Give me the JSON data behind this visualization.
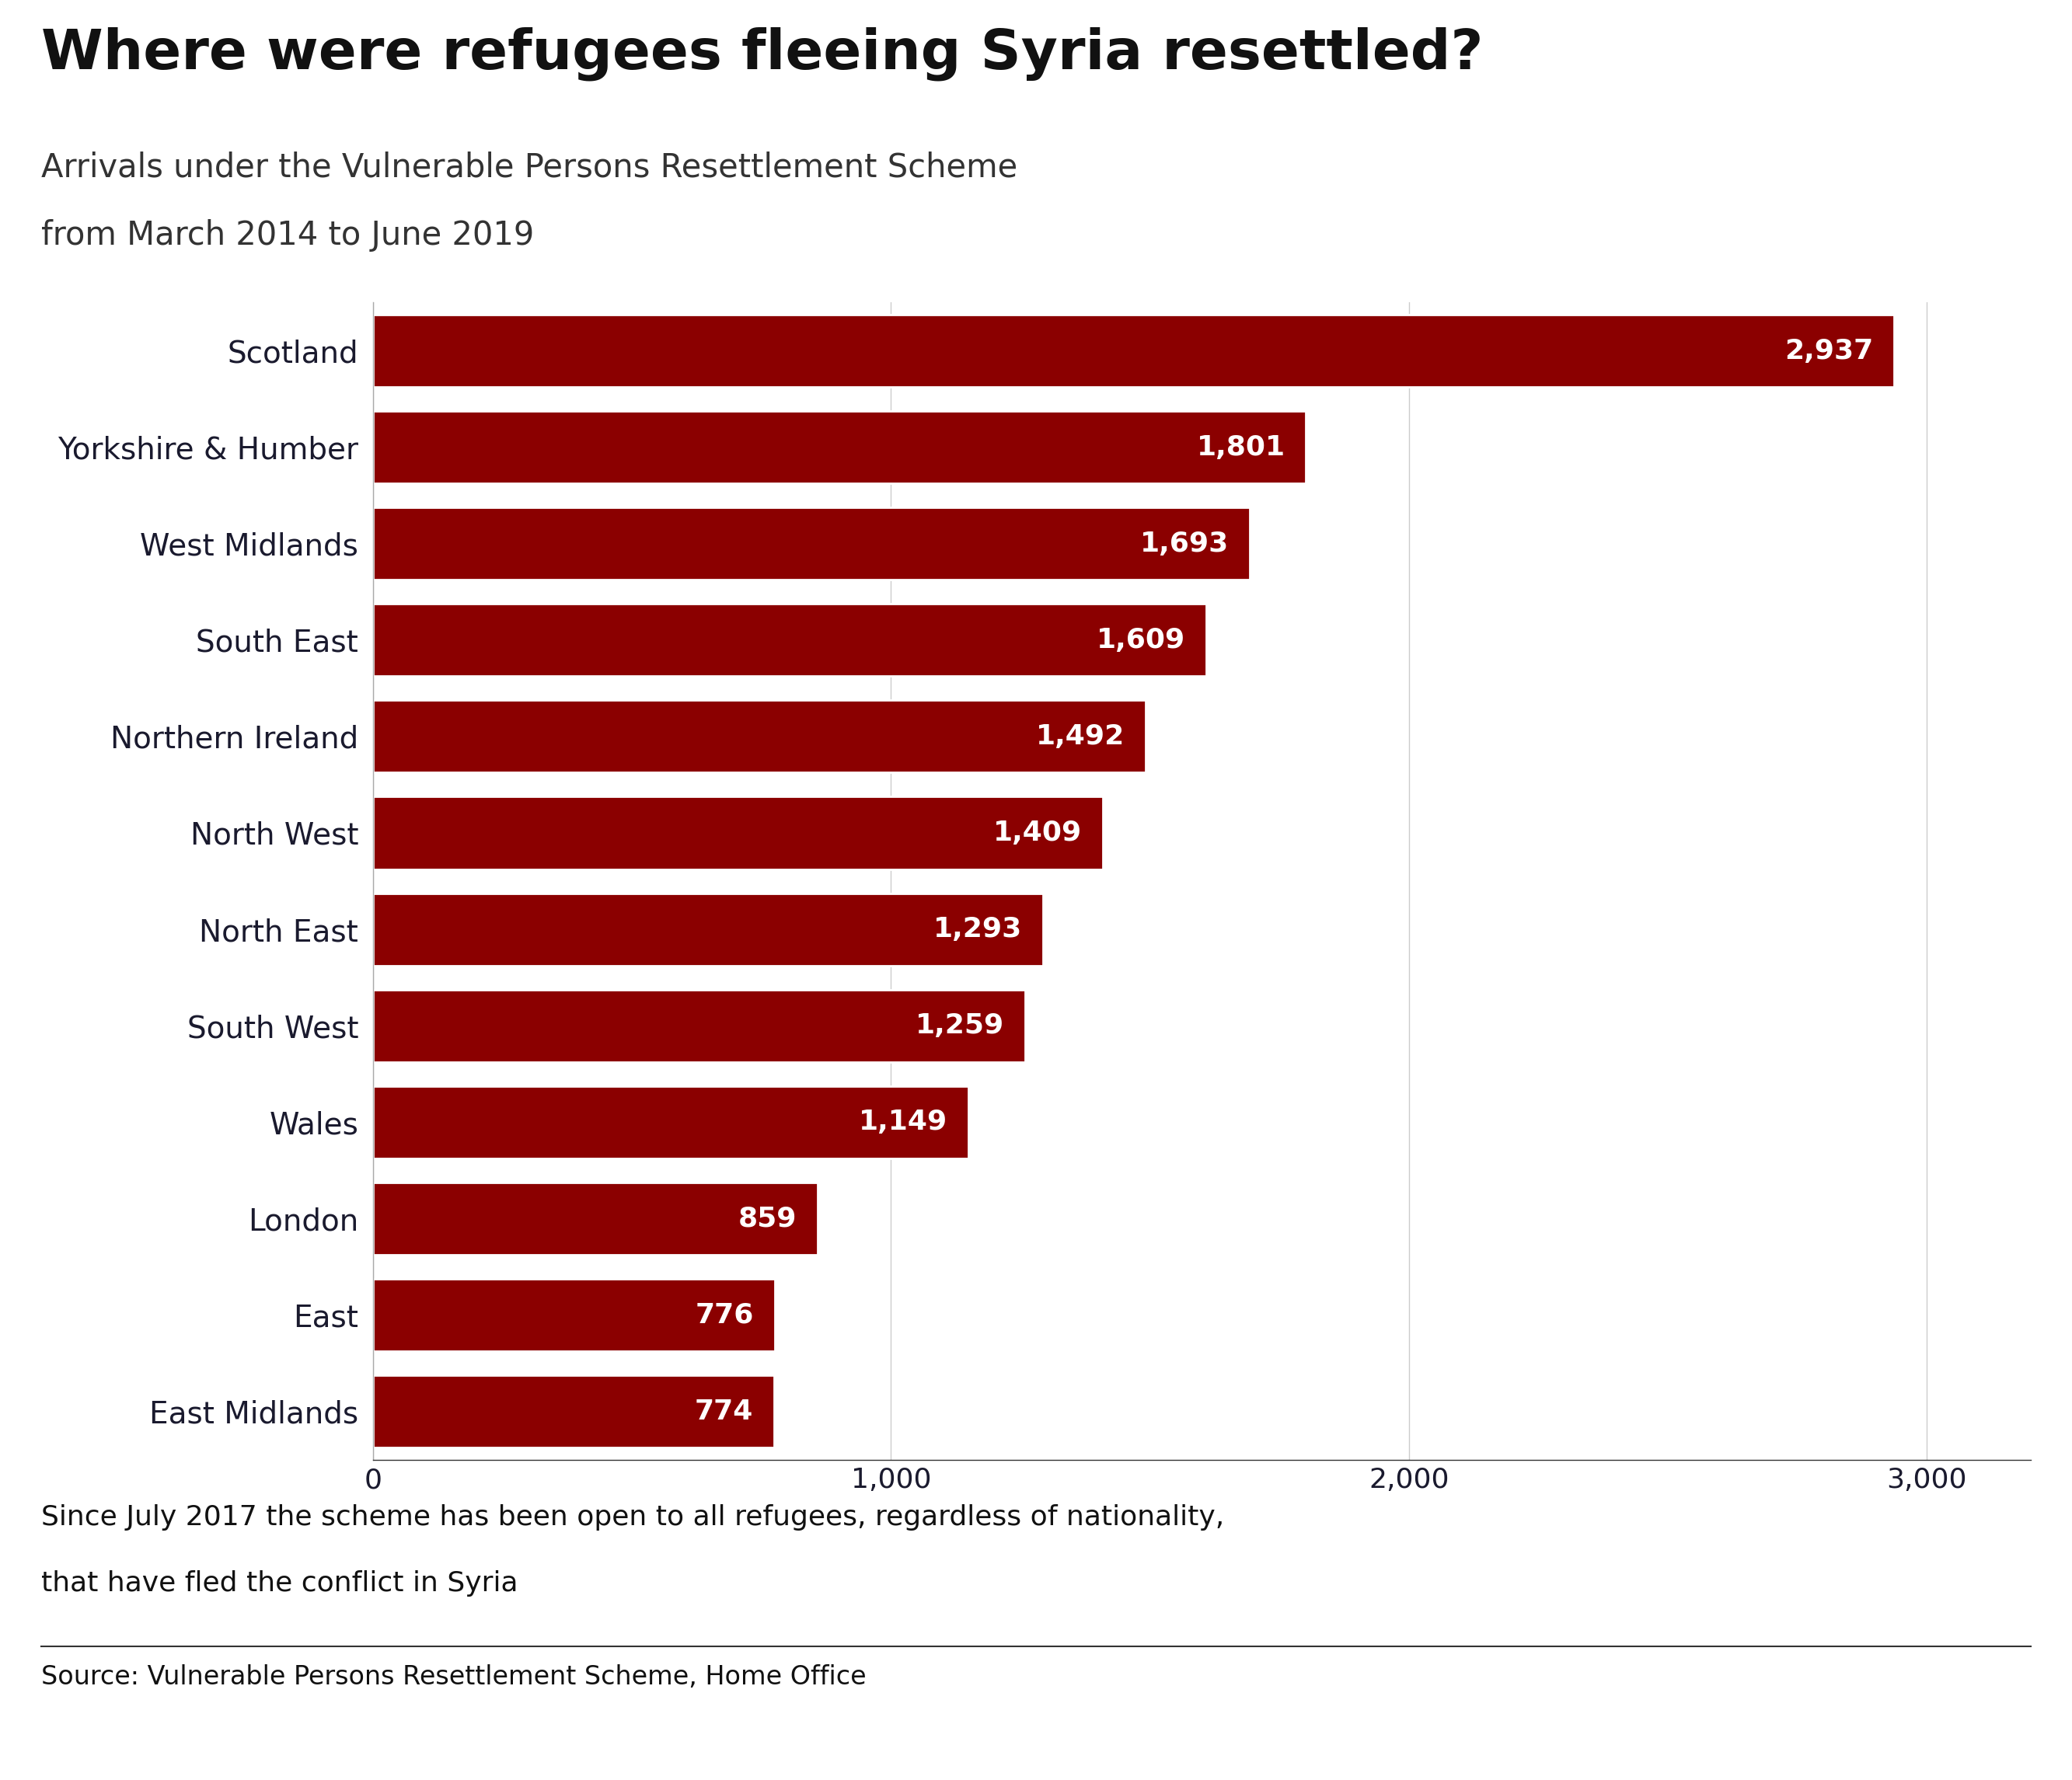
{
  "title": "Where were refugees fleeing Syria resettled?",
  "subtitle_line1": "Arrivals under the Vulnerable Persons Resettlement Scheme",
  "subtitle_line2": "from March 2014 to June 2019",
  "categories": [
    "Scotland",
    "Yorkshire & Humber",
    "West Midlands",
    "South East",
    "Northern Ireland",
    "North West",
    "North East",
    "South West",
    "Wales",
    "London",
    "East",
    "East Midlands"
  ],
  "values": [
    2937,
    1801,
    1693,
    1609,
    1492,
    1409,
    1293,
    1259,
    1149,
    859,
    776,
    774
  ],
  "bar_color": "#8B0000",
  "bar_label_color": "#FFFFFF",
  "text_color": "#1a1a2e",
  "background_color": "#FFFFFF",
  "footnote_line1": "Since July 2017 the scheme has been open to all refugees, regardless of nationality,",
  "footnote_line2": "that have fled the conflict in Syria",
  "source_text": "Source: Vulnerable Persons Resettlement Scheme, Home Office",
  "xlim": [
    0,
    3200
  ],
  "xticks": [
    0,
    1000,
    2000,
    3000
  ],
  "xtick_labels": [
    "0",
    "1,000",
    "2,000",
    "3,000"
  ],
  "title_fontsize": 52,
  "subtitle_fontsize": 30,
  "category_fontsize": 28,
  "value_fontsize": 26,
  "xtick_fontsize": 26,
  "footnote_fontsize": 26,
  "source_fontsize": 24,
  "bbc_box_color": "#6e6e6e",
  "bbc_text_color": "#FFFFFF"
}
